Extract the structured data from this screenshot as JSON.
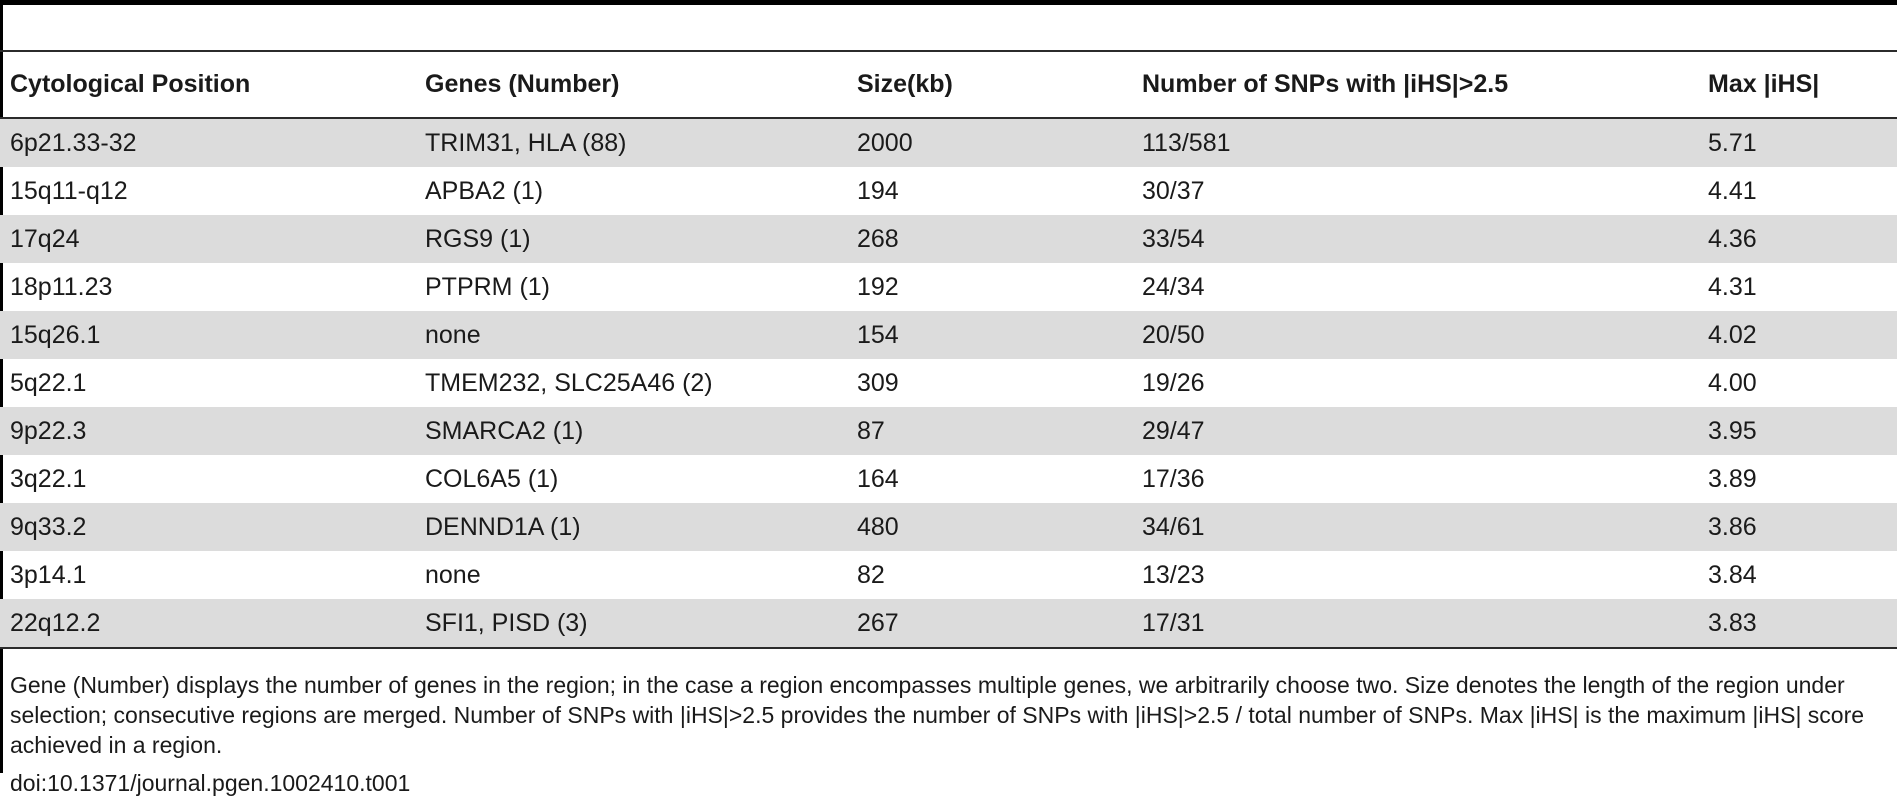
{
  "table": {
    "headers": [
      "Cytological Position",
      "Genes (Number)",
      "Size(kb)",
      "Number of SNPs with |iHS|>2.5",
      "Max |iHS|"
    ],
    "rows": [
      [
        "6p21.33-32",
        "TRIM31, HLA (88)",
        "2000",
        "113/581",
        "5.71"
      ],
      [
        "15q11-q12",
        "APBA2 (1)",
        "194",
        "30/37",
        "4.41"
      ],
      [
        "17q24",
        "RGS9 (1)",
        "268",
        "33/54",
        "4.36"
      ],
      [
        "18p11.23",
        "PTPRM (1)",
        "192",
        "24/34",
        "4.31"
      ],
      [
        "15q26.1",
        "none",
        "154",
        "20/50",
        "4.02"
      ],
      [
        "5q22.1",
        "TMEM232, SLC25A46 (2)",
        "309",
        "19/26",
        "4.00"
      ],
      [
        "9p22.3",
        "SMARCA2 (1)",
        "87",
        "29/47",
        "3.95"
      ],
      [
        "3q22.1",
        "COL6A5 (1)",
        "164",
        "17/36",
        "3.89"
      ],
      [
        "9q33.2",
        "DENND1A (1)",
        "480",
        "34/61",
        "3.86"
      ],
      [
        "3p14.1",
        "none",
        "82",
        "13/23",
        "3.84"
      ],
      [
        "22q12.2",
        "SFI1, PISD (3)",
        "267",
        "17/31",
        "3.83"
      ]
    ]
  },
  "footnote": "Gene (Number) displays the number of genes in the region; in the case a region encompasses multiple genes, we arbitrarily choose two. Size denotes the length of the region under selection; consecutive regions are merged. Number of SNPs with |iHS|>2.5 provides the number of SNPs with |iHS|>2.5 / total number of SNPs. Max |iHS| is the maximum |iHS| score achieved in a region.",
  "doi": "doi:10.1371/journal.pgen.1002410.t001",
  "colors": {
    "stripe": "#dcdcdc",
    "rule": "#2b2b2b",
    "text": "#1a1a1a"
  }
}
